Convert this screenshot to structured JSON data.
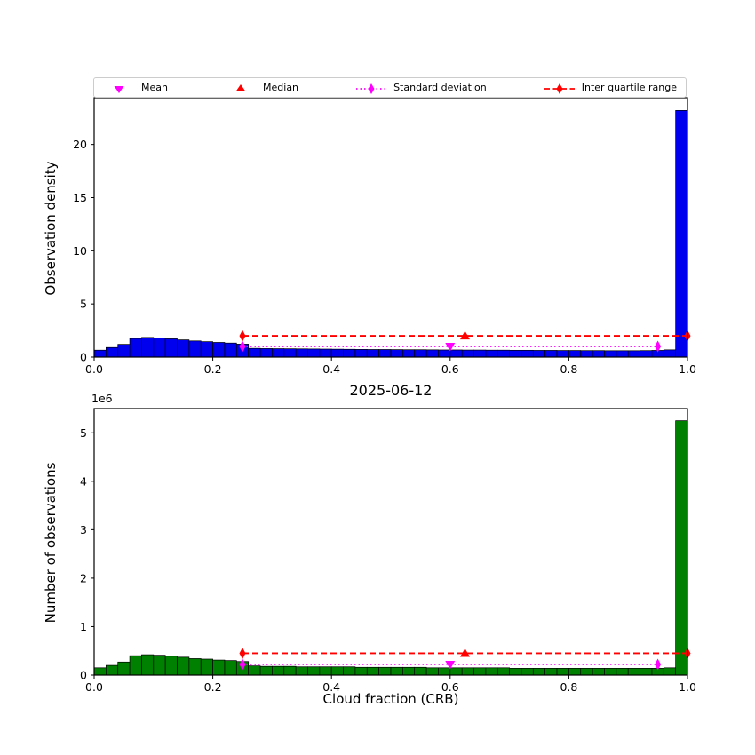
{
  "colors": {
    "top_bar": "#0000ee",
    "bottom_bar": "#008000",
    "bar_edge": "#000000",
    "iqr": "#ff0000",
    "std": "#ff00ff",
    "mean": "#ff00ff",
    "median": "#ff0000",
    "axes": "#000000",
    "legend_border": "#cccccc"
  },
  "legend": [
    {
      "label": "Mean",
      "marker": "triangle-down",
      "color": "#ff00ff",
      "line": "none"
    },
    {
      "label": "Median",
      "marker": "triangle-up",
      "color": "#ff0000",
      "line": "none"
    },
    {
      "label": "Standard deviation",
      "marker": "diamond",
      "color": "#ff00ff",
      "line": "dotted"
    },
    {
      "label": "Inter quartile range",
      "marker": "diamond",
      "color": "#ff0000",
      "line": "dashed"
    }
  ],
  "chart_data": [
    {
      "type": "bar",
      "title": "",
      "xlabel": "",
      "ylabel": "Observation density",
      "bin_start": 0.0,
      "bin_width": 0.02,
      "bar_color": "#0000ee",
      "xlim": [
        0.0,
        1.0
      ],
      "ylim": [
        0,
        24.4
      ],
      "xticks": [
        0.0,
        0.2,
        0.4,
        0.6,
        0.8,
        1.0
      ],
      "xtick_labels": [
        "0.0",
        "0.2",
        "0.4",
        "0.6",
        "0.8",
        "1.0"
      ],
      "yticks": [
        0,
        5,
        10,
        15,
        20
      ],
      "ytick_labels": [
        "0",
        "5",
        "10",
        "15",
        "20"
      ],
      "values": [
        0.65,
        0.9,
        1.2,
        1.75,
        1.85,
        1.8,
        1.72,
        1.62,
        1.52,
        1.45,
        1.38,
        1.32,
        1.22,
        0.82,
        0.8,
        0.79,
        0.78,
        0.77,
        0.76,
        0.75,
        0.74,
        0.73,
        0.72,
        0.71,
        0.71,
        0.7,
        0.69,
        0.69,
        0.68,
        0.67,
        0.67,
        0.66,
        0.66,
        0.65,
        0.65,
        0.64,
        0.64,
        0.63,
        0.63,
        0.62,
        0.62,
        0.61,
        0.61,
        0.6,
        0.6,
        0.6,
        0.61,
        0.63,
        0.68,
        23.2
      ],
      "stats": {
        "mean_x": 0.6,
        "mean_y": 1.0,
        "median_x": 0.625,
        "median_y": 2.0,
        "iqr": [
          0.25,
          1.0
        ],
        "iqr_y": 2.0,
        "std_range": [
          0.25,
          0.95
        ],
        "std_y": 1.0
      }
    },
    {
      "type": "bar",
      "title": "2025-06-12",
      "xlabel": "Cloud fraction (CRB)",
      "ylabel": "Number of observations",
      "offset_text": "1e6",
      "bin_start": 0.0,
      "bin_width": 0.02,
      "bar_color": "#008000",
      "xlim": [
        0.0,
        1.0
      ],
      "ylim": [
        0,
        5.5
      ],
      "xticks": [
        0.0,
        0.2,
        0.4,
        0.6,
        0.8,
        1.0
      ],
      "xtick_labels": [
        "0.0",
        "0.2",
        "0.4",
        "0.6",
        "0.8",
        "1.0"
      ],
      "yticks": [
        0,
        1,
        2,
        3,
        4,
        5
      ],
      "ytick_labels": [
        "0",
        "1",
        "2",
        "3",
        "4",
        "5"
      ],
      "values": [
        0.15,
        0.2,
        0.27,
        0.4,
        0.42,
        0.41,
        0.39,
        0.37,
        0.34,
        0.33,
        0.31,
        0.3,
        0.28,
        0.19,
        0.18,
        0.18,
        0.18,
        0.17,
        0.17,
        0.17,
        0.17,
        0.17,
        0.16,
        0.16,
        0.16,
        0.16,
        0.16,
        0.16,
        0.15,
        0.15,
        0.15,
        0.15,
        0.15,
        0.15,
        0.15,
        0.14,
        0.14,
        0.14,
        0.14,
        0.14,
        0.14,
        0.14,
        0.14,
        0.14,
        0.14,
        0.14,
        0.14,
        0.14,
        0.15,
        5.25
      ],
      "stats": {
        "mean_x": 0.6,
        "mean_y": 0.22,
        "median_x": 0.625,
        "median_y": 0.45,
        "iqr": [
          0.25,
          1.0
        ],
        "iqr_y": 0.45,
        "std_range": [
          0.25,
          0.95
        ],
        "std_y": 0.22
      }
    }
  ]
}
